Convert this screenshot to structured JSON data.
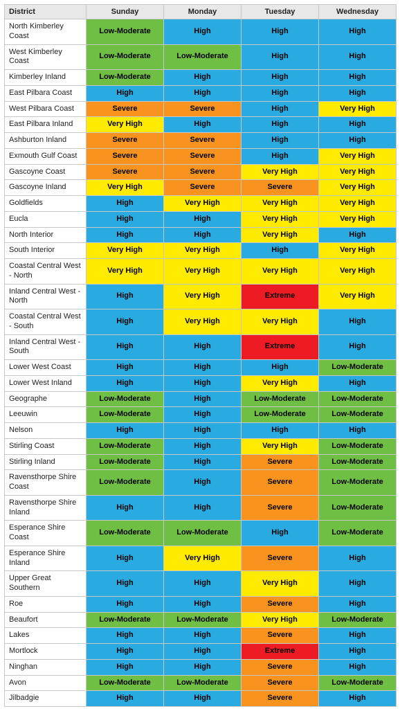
{
  "columns": [
    "District",
    "Sunday",
    "Monday",
    "Tuesday",
    "Wednesday"
  ],
  "rating_colors": {
    "Low-Moderate": "#6fbf44",
    "High": "#29abe2",
    "Very High": "#ffeb00",
    "Severe": "#f7931e",
    "Extreme": "#ed1c24"
  },
  "rows": [
    {
      "district": "North Kimberley Coast",
      "days": [
        "Low-Moderate",
        "High",
        "High",
        "High"
      ]
    },
    {
      "district": "West Kimberley Coast",
      "days": [
        "Low-Moderate",
        "Low-Moderate",
        "High",
        "High"
      ]
    },
    {
      "district": "Kimberley Inland",
      "days": [
        "Low-Moderate",
        "High",
        "High",
        "High"
      ]
    },
    {
      "district": "East Pilbara Coast",
      "days": [
        "High",
        "High",
        "High",
        "High"
      ]
    },
    {
      "district": "West Pilbara Coast",
      "days": [
        "Severe",
        "Severe",
        "High",
        "Very High"
      ]
    },
    {
      "district": "East Pilbara Inland",
      "days": [
        "Very High",
        "High",
        "High",
        "High"
      ]
    },
    {
      "district": "Ashburton Inland",
      "days": [
        "Severe",
        "Severe",
        "High",
        "High"
      ]
    },
    {
      "district": "Exmouth Gulf Coast",
      "days": [
        "Severe",
        "Severe",
        "High",
        "Very High"
      ]
    },
    {
      "district": "Gascoyne Coast",
      "days": [
        "Severe",
        "Severe",
        "Very High",
        "Very High"
      ]
    },
    {
      "district": "Gascoyne Inland",
      "days": [
        "Very High",
        "Severe",
        "Severe",
        "Very High"
      ]
    },
    {
      "district": "Goldfields",
      "days": [
        "High",
        "Very High",
        "Very High",
        "Very High"
      ]
    },
    {
      "district": "Eucla",
      "days": [
        "High",
        "High",
        "Very High",
        "Very High"
      ]
    },
    {
      "district": "North Interior",
      "days": [
        "High",
        "High",
        "Very High",
        "High"
      ]
    },
    {
      "district": "South Interior",
      "days": [
        "Very High",
        "Very High",
        "High",
        "Very High"
      ]
    },
    {
      "district": "Coastal Central West - North",
      "days": [
        "Very High",
        "Very High",
        "Very High",
        "Very High"
      ]
    },
    {
      "district": "Inland Central West - North",
      "days": [
        "High",
        "Very High",
        "Extreme",
        "Very High"
      ]
    },
    {
      "district": "Coastal Central West - South",
      "days": [
        "High",
        "Very High",
        "Very High",
        "High"
      ]
    },
    {
      "district": "Inland Central West - South",
      "days": [
        "High",
        "High",
        "Extreme",
        "High"
      ]
    },
    {
      "district": "Lower West Coast",
      "days": [
        "High",
        "High",
        "High",
        "Low-Moderate"
      ]
    },
    {
      "district": "Lower West Inland",
      "days": [
        "High",
        "High",
        "Very High",
        "High"
      ]
    },
    {
      "district": "Geographe",
      "days": [
        "Low-Moderate",
        "High",
        "Low-Moderate",
        "Low-Moderate"
      ]
    },
    {
      "district": "Leeuwin",
      "days": [
        "Low-Moderate",
        "High",
        "Low-Moderate",
        "Low-Moderate"
      ]
    },
    {
      "district": "Nelson",
      "days": [
        "High",
        "High",
        "High",
        "High"
      ]
    },
    {
      "district": "Stirling Coast",
      "days": [
        "Low-Moderate",
        "High",
        "Very High",
        "Low-Moderate"
      ]
    },
    {
      "district": "Stirling Inland",
      "days": [
        "Low-Moderate",
        "High",
        "Severe",
        "Low-Moderate"
      ]
    },
    {
      "district": "Ravensthorpe Shire Coast",
      "days": [
        "Low-Moderate",
        "High",
        "Severe",
        "Low-Moderate"
      ]
    },
    {
      "district": "Ravensthorpe Shire Inland",
      "days": [
        "High",
        "High",
        "Severe",
        "Low-Moderate"
      ]
    },
    {
      "district": "Esperance Shire Coast",
      "days": [
        "Low-Moderate",
        "Low-Moderate",
        "High",
        "Low-Moderate"
      ]
    },
    {
      "district": "Esperance Shire Inland",
      "days": [
        "High",
        "Very High",
        "Severe",
        "High"
      ]
    },
    {
      "district": "Upper Great Southern",
      "days": [
        "High",
        "High",
        "Very High",
        "High"
      ]
    },
    {
      "district": "Roe",
      "days": [
        "High",
        "High",
        "Severe",
        "High"
      ]
    },
    {
      "district": "Beaufort",
      "days": [
        "Low-Moderate",
        "Low-Moderate",
        "Very High",
        "Low-Moderate"
      ]
    },
    {
      "district": "Lakes",
      "days": [
        "High",
        "High",
        "Severe",
        "High"
      ]
    },
    {
      "district": "Mortlock",
      "days": [
        "High",
        "High",
        "Extreme",
        "High"
      ]
    },
    {
      "district": "Ninghan",
      "days": [
        "High",
        "High",
        "Severe",
        "High"
      ]
    },
    {
      "district": "Avon",
      "days": [
        "Low-Moderate",
        "Low-Moderate",
        "Severe",
        "Low-Moderate"
      ]
    },
    {
      "district": "Jilbadgie",
      "days": [
        "High",
        "High",
        "Severe",
        "High"
      ]
    }
  ]
}
